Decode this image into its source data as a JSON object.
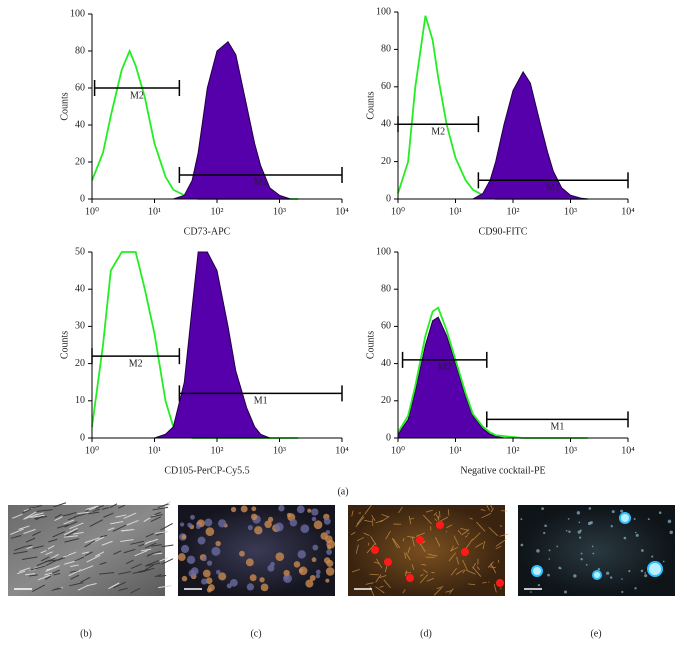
{
  "chart_data": [
    {
      "type": "histogram",
      "x_label": "CD73-APC",
      "y_label": "Counts",
      "xscale": "log",
      "xlim": [
        1,
        10000
      ],
      "xticks": [
        {
          "value": 1,
          "label": "10⁰"
        },
        {
          "value": 10,
          "label": "10¹"
        },
        {
          "value": 100,
          "label": "10²"
        },
        {
          "value": 1000,
          "label": "10³"
        },
        {
          "value": 10000,
          "label": "10⁴"
        }
      ],
      "ylim": [
        0,
        100
      ],
      "yticks": [
        0,
        20,
        40,
        60,
        80,
        100
      ],
      "x": [
        1,
        1.5,
        2,
        3,
        4,
        5,
        7,
        10,
        15,
        20,
        30,
        40,
        50,
        70,
        100,
        150,
        200,
        300,
        400,
        500,
        700,
        1000,
        1500,
        2000
      ],
      "series": [
        {
          "color": "#22ee22",
          "fill": false,
          "values": [
            10,
            25,
            45,
            70,
            80,
            72,
            55,
            30,
            12,
            5,
            2,
            1,
            0,
            0,
            0,
            0,
            0,
            0,
            0,
            0,
            0,
            0,
            0,
            0
          ]
        },
        {
          "color": "#5500aa",
          "fill": true,
          "values": [
            0,
            0,
            0,
            0,
            0,
            0,
            0,
            0,
            0,
            0,
            2,
            10,
            25,
            60,
            80,
            85,
            78,
            50,
            30,
            18,
            6,
            2,
            0,
            0
          ]
        }
      ],
      "gates": [
        {
          "label": "M2",
          "x": [
            1.1,
            25
          ],
          "y": 60
        },
        {
          "label": "M1",
          "x": [
            25,
            10000
          ],
          "y": 13
        }
      ]
    },
    {
      "type": "histogram",
      "x_label": "CD90-FITC",
      "y_label": "Counts",
      "xscale": "log",
      "xlim": [
        1,
        10000
      ],
      "xticks": [
        {
          "value": 1,
          "label": "10⁰"
        },
        {
          "value": 10,
          "label": "10¹"
        },
        {
          "value": 100,
          "label": "10²"
        },
        {
          "value": 1000,
          "label": "10³"
        },
        {
          "value": 10000,
          "label": "10⁴"
        }
      ],
      "ylim": [
        0,
        100
      ],
      "yticks": [
        0,
        20,
        40,
        60,
        80,
        100
      ],
      "x": [
        1,
        1.5,
        2,
        3,
        4,
        5,
        7,
        10,
        15,
        20,
        30,
        40,
        50,
        70,
        100,
        150,
        200,
        300,
        400,
        500,
        700,
        1000,
        1500,
        2000
      ],
      "series": [
        {
          "color": "#22ee22",
          "fill": false,
          "values": [
            3,
            20,
            60,
            98,
            85,
            65,
            40,
            22,
            10,
            5,
            2,
            1,
            0,
            0,
            0,
            0,
            0,
            0,
            0,
            0,
            0,
            0,
            0,
            0
          ]
        },
        {
          "color": "#5500aa",
          "fill": true,
          "values": [
            0,
            0,
            0,
            0,
            0,
            0,
            0,
            0,
            0,
            0,
            3,
            10,
            20,
            40,
            58,
            68,
            62,
            40,
            25,
            15,
            6,
            2,
            0.5,
            0
          ]
        }
      ],
      "gates": [
        {
          "label": "M2",
          "x": [
            1,
            25
          ],
          "y": 40
        },
        {
          "label": "M1",
          "x": [
            25,
            10000
          ],
          "y": 10
        }
      ]
    },
    {
      "type": "histogram",
      "x_label": "CD105-PerCP-Cy5.5",
      "y_label": "Counts",
      "xscale": "log",
      "xlim": [
        1,
        10000
      ],
      "xticks": [
        {
          "value": 1,
          "label": "10⁰"
        },
        {
          "value": 10,
          "label": "10¹"
        },
        {
          "value": 100,
          "label": "10²"
        },
        {
          "value": 1000,
          "label": "10³"
        },
        {
          "value": 10000,
          "label": "10⁴"
        }
      ],
      "ylim": [
        0,
        50
      ],
      "yticks": [
        0,
        10,
        20,
        30,
        40,
        50
      ],
      "x": [
        1,
        1.5,
        2,
        3,
        4,
        5,
        7,
        10,
        15,
        20,
        30,
        40,
        50,
        70,
        100,
        150,
        200,
        300,
        400,
        500,
        700,
        1000,
        1500,
        2000
      ],
      "series": [
        {
          "color": "#22ee22",
          "fill": false,
          "values": [
            3,
            25,
            45,
            50,
            50,
            50,
            40,
            28,
            10,
            3,
            1,
            0,
            0,
            0,
            0,
            0,
            0,
            0,
            0,
            0,
            0,
            0,
            0,
            0
          ]
        },
        {
          "color": "#5500aa",
          "fill": true,
          "values": [
            0,
            0,
            0,
            0,
            0,
            0,
            0,
            0,
            1,
            3,
            15,
            35,
            50,
            50,
            45,
            30,
            18,
            8,
            3,
            1,
            0,
            0,
            0,
            0
          ]
        }
      ],
      "gates": [
        {
          "label": "M2",
          "x": [
            1,
            25
          ],
          "y": 22
        },
        {
          "label": "M1",
          "x": [
            25,
            10000
          ],
          "y": 12
        }
      ]
    },
    {
      "type": "histogram",
      "x_label": "Negative cocktail-PE",
      "y_label": "Counts",
      "xscale": "log",
      "xlim": [
        1,
        10000
      ],
      "xticks": [
        {
          "value": 1,
          "label": "10⁰"
        },
        {
          "value": 10,
          "label": "10¹"
        },
        {
          "value": 100,
          "label": "10²"
        },
        {
          "value": 1000,
          "label": "10³"
        },
        {
          "value": 10000,
          "label": "10⁴"
        }
      ],
      "ylim": [
        0,
        100
      ],
      "yticks": [
        0,
        20,
        40,
        60,
        80,
        100
      ],
      "x": [
        1,
        1.5,
        2,
        3,
        4,
        5,
        7,
        10,
        15,
        20,
        30,
        40,
        50,
        70,
        100,
        150,
        200,
        300,
        400,
        500,
        700,
        1000,
        1500,
        2000
      ],
      "series": [
        {
          "color": "#5500aa",
          "fill": true,
          "values": [
            2,
            10,
            25,
            50,
            63,
            65,
            55,
            40,
            22,
            12,
            5,
            2,
            1,
            0,
            0,
            0,
            0,
            0,
            0,
            0,
            0,
            0,
            0,
            0
          ]
        },
        {
          "color": "#22ee22",
          "fill": false,
          "values": [
            3,
            12,
            28,
            55,
            68,
            70,
            58,
            42,
            24,
            13,
            6,
            3,
            1.5,
            1,
            0.5,
            0,
            0,
            0,
            0,
            0,
            0,
            0,
            0,
            0
          ]
        }
      ],
      "gates": [
        {
          "label": "M2",
          "x": [
            1.2,
            35
          ],
          "y": 42
        },
        {
          "label": "M1",
          "x": [
            35,
            10000
          ],
          "y": 10
        }
      ]
    }
  ],
  "panel_labels": [
    "(a)",
    "(b)",
    "(c)",
    "(d)",
    "(e)"
  ]
}
